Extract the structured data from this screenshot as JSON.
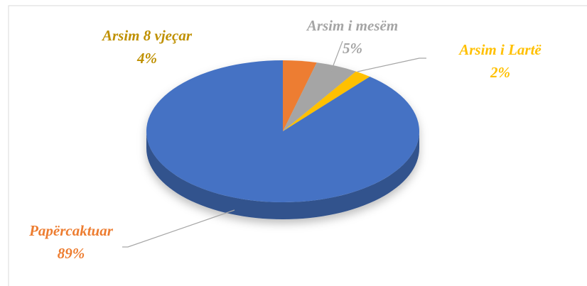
{
  "chart_data": {
    "type": "pie3d",
    "categories": [
      "Arsim 8 vjeçar",
      "Arsim i mesëm",
      "Arsim i Lartë",
      "Papërcaktuar"
    ],
    "values": [
      4,
      5,
      2,
      89
    ],
    "value_labels": [
      "4%",
      "5%",
      "2%",
      "89%"
    ],
    "colors": [
      "#ED7D31",
      "#A5A5A5",
      "#FFC000",
      "#4472C4"
    ],
    "label_colors": [
      "#BF9000",
      "#A5A5A5",
      "#FFC000",
      "#ED7D31"
    ]
  }
}
